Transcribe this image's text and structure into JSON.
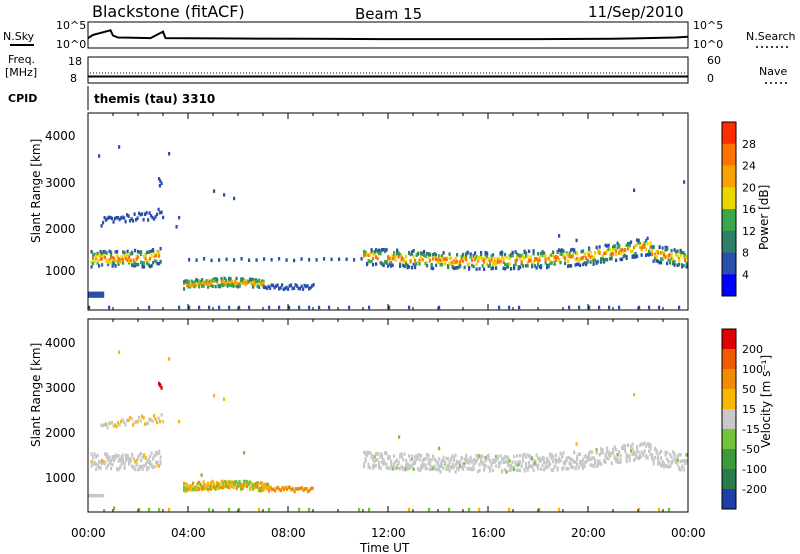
{
  "header": {
    "title": "Blackstone (fitACF)",
    "beam": "Beam 15",
    "date": "11/Sep/2010"
  },
  "side_labels": {
    "nsky": "N.Sky",
    "freq1": "Freq.",
    "freq2": "[MHz]",
    "cpid": "CPID",
    "nsearch": "N.Search",
    "nave": "Nave"
  },
  "cpid_text": "themis (tau) 3310",
  "chart_data": [
    {
      "type": "line",
      "panel": "noise",
      "ylabel_left": "N.Sky",
      "ylabel_right": "N.Search",
      "yticks_left": [
        "10^5",
        "10^0"
      ],
      "yticks_right": [
        "10^5",
        "10^0"
      ],
      "x_hours": [
        0,
        0.2,
        0.9,
        1.0,
        1.2,
        2.5,
        3.0,
        3.1,
        6,
        9,
        12,
        15,
        18,
        21,
        23.5,
        24
      ],
      "values": [
        0.3,
        0.55,
        0.9,
        0.5,
        0.35,
        0.3,
        0.8,
        0.3,
        0.27,
        0.25,
        0.22,
        0.22,
        0.22,
        0.25,
        0.35,
        0.4
      ]
    },
    {
      "type": "line",
      "panel": "frequency_nave",
      "ylabel_left": "Freq. [MHz]",
      "ylabel_right": "Nave",
      "yticks_left": [
        "18",
        "8"
      ],
      "yticks_right": [
        "60",
        "0"
      ],
      "freq_mhz_constant": 10.5
    },
    {
      "type": "heatmap",
      "panel": "power",
      "xlabel": "",
      "ylabel": "Slant Range [km]",
      "yticks": [
        1000,
        2000,
        3000,
        4000
      ],
      "ylim": [
        180,
        4500
      ],
      "xlim_hours": [
        0,
        24
      ],
      "colorbar_label": "Power [dB]",
      "colorbar_ticks": [
        4,
        8,
        12,
        16,
        20,
        24,
        28
      ],
      "colors": [
        "#0000ff",
        "#2a4faa",
        "#2f7f6a",
        "#3aa84a",
        "#e8d800",
        "#f7a200",
        "#ff7400",
        "#ff2c00"
      ]
    },
    {
      "type": "heatmap",
      "panel": "velocity",
      "xlabel": "Time UT",
      "ylabel": "Slant Range [km]",
      "yticks": [
        1000,
        2000,
        3000,
        4000
      ],
      "ylim": [
        180,
        4500
      ],
      "xlim_hours": [
        0,
        24
      ],
      "xticks": [
        "00:00",
        "04:00",
        "08:00",
        "12:00",
        "16:00",
        "20:00",
        "00:00"
      ],
      "colorbar_label": "Velocity [m s^-1]",
      "colorbar_ticks": [
        "200",
        "100",
        "50",
        "15",
        "-15",
        "-50",
        "-100",
        "-200"
      ],
      "colors": [
        "#1f3ea8",
        "#2a7a4a",
        "#3c9a3c",
        "#72c43a",
        "#c8c8c8",
        "#f7b700",
        "#f08c00",
        "#f05a00",
        "#e00000"
      ]
    }
  ]
}
